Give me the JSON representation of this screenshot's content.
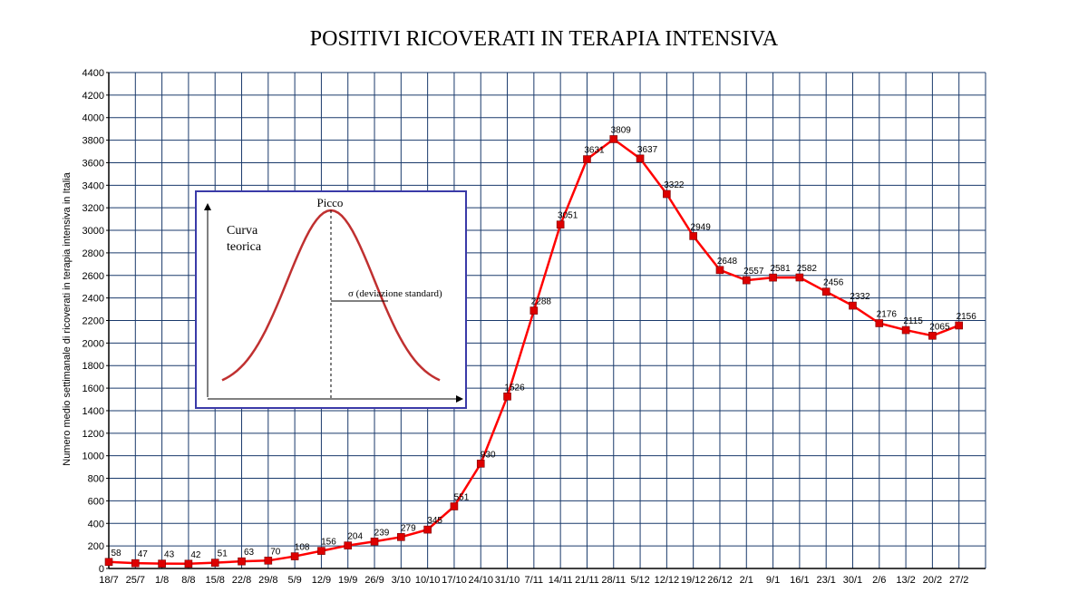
{
  "chart_data": {
    "type": "line",
    "title": "POSITIVI RICOVERATI IN TERAPIA INTENSIVA",
    "xlabel": "",
    "ylabel": "Numero medio settimanale di ricoverati in terapia intensiva in Italia",
    "ylim": [
      0,
      4400
    ],
    "ytick_step": 200,
    "grid": true,
    "categories": [
      "18/7",
      "25/7",
      "1/8",
      "8/8",
      "15/8",
      "22/8",
      "29/8",
      "5/9",
      "12/9",
      "19/9",
      "26/9",
      "3/10",
      "10/10",
      "17/10",
      "24/10",
      "31/10",
      "7/11",
      "14/11",
      "21/11",
      "28/11",
      "5/12",
      "12/12",
      "19/12",
      "26/12",
      "2/1",
      "9/1",
      "16/1",
      "23/1",
      "30/1",
      "2/6",
      "13/2",
      "20/2",
      "27/2"
    ],
    "series": [
      {
        "values": [
          58,
          47,
          43,
          42,
          51,
          63,
          70,
          108,
          156,
          204,
          239,
          279,
          345,
          551,
          930,
          1526,
          2288,
          3051,
          3631,
          3809,
          3637,
          3322,
          2949,
          2648,
          2557,
          2581,
          2582,
          2456,
          2332,
          2176,
          2115,
          2065,
          2156
        ],
        "color": "#ff0000",
        "marker_color": "#dd0000"
      }
    ],
    "inset": {
      "label_curve_1": "Curva",
      "label_curve_2": "teorica",
      "label_peak": "Picco",
      "label_sigma": "σ  (deviazione standard)",
      "border_color": "#3a3aa8",
      "curve_color": "#c03030"
    },
    "colors": {
      "grid": "#1a3a6b",
      "line": "#ff0000"
    }
  }
}
